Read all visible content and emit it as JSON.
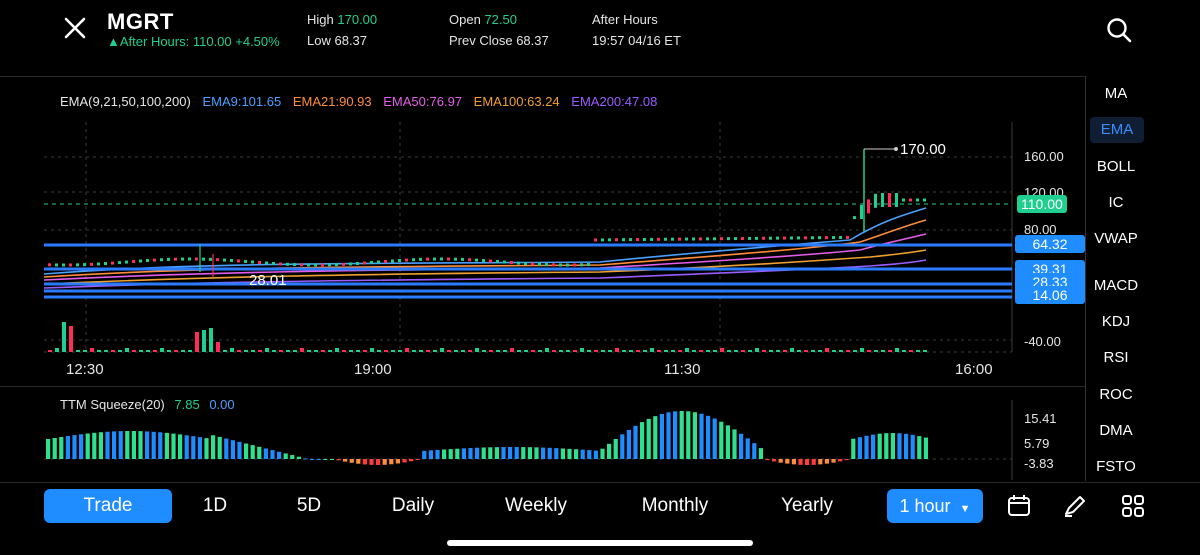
{
  "header": {
    "ticker": "MGRT",
    "after_hours_line": "After Hours: 110.00 +4.50%",
    "high_label": "High",
    "high_value": "170.00",
    "low_label": "Low",
    "low_value": "68.37",
    "open_label": "Open",
    "open_value": "72.50",
    "prev_close_label": "Prev Close",
    "prev_close_value": "68.37",
    "after_hours_label": "After Hours",
    "after_hours_time": "19:57 04/16 ET"
  },
  "ema_legend": {
    "title": "EMA(9,21,50,100,200)",
    "items": [
      {
        "text": "EMA9:101.65",
        "color": "#4aa0ff"
      },
      {
        "text": "EMA21:90.93",
        "color": "#ff8c3a"
      },
      {
        "text": "EMA50:76.97",
        "color": "#e35de8"
      },
      {
        "text": "EMA100:63.24",
        "color": "#f0a030"
      },
      {
        "text": "EMA200:47.08",
        "color": "#9a5cff"
      }
    ]
  },
  "price_axis": {
    "ticks": [
      "160.00",
      "120.00",
      "80.00",
      "-40.00"
    ],
    "last_price": "110.00",
    "level_badges": [
      "64.32",
      "39.31",
      "28.33",
      "14.06"
    ],
    "high_marker": "170.00",
    "low_marker": "28.01"
  },
  "time_axis": [
    "12:30",
    "19:00",
    "11:30",
    "16:00"
  ],
  "ttm": {
    "title": "TTM Squeeze(20)",
    "value1": "7.85",
    "value2": "0.00",
    "ticks": [
      "15.41",
      "5.79",
      "-3.83"
    ]
  },
  "sidebar": {
    "items": [
      "MA",
      "EMA",
      "BOLL",
      "IC",
      "VWAP",
      "MACD",
      "KDJ",
      "RSI",
      "ROC",
      "DMA",
      "FSTO"
    ],
    "active": "EMA"
  },
  "toolbar": {
    "trade": "Trade",
    "d1": "1D",
    "d5": "5D",
    "daily": "Daily",
    "weekly": "Weekly",
    "monthly": "Monthly",
    "yearly": "Yearly",
    "interval": "1 hour"
  },
  "icons": [
    "close-icon",
    "search-icon",
    "calendar-icon",
    "draw-pen-icon",
    "grid-icon"
  ],
  "colors": {
    "green": "#1fcf8f",
    "red": "#ff2d55",
    "blue": "#1f8cff",
    "level_line": "#2b7bff"
  }
}
